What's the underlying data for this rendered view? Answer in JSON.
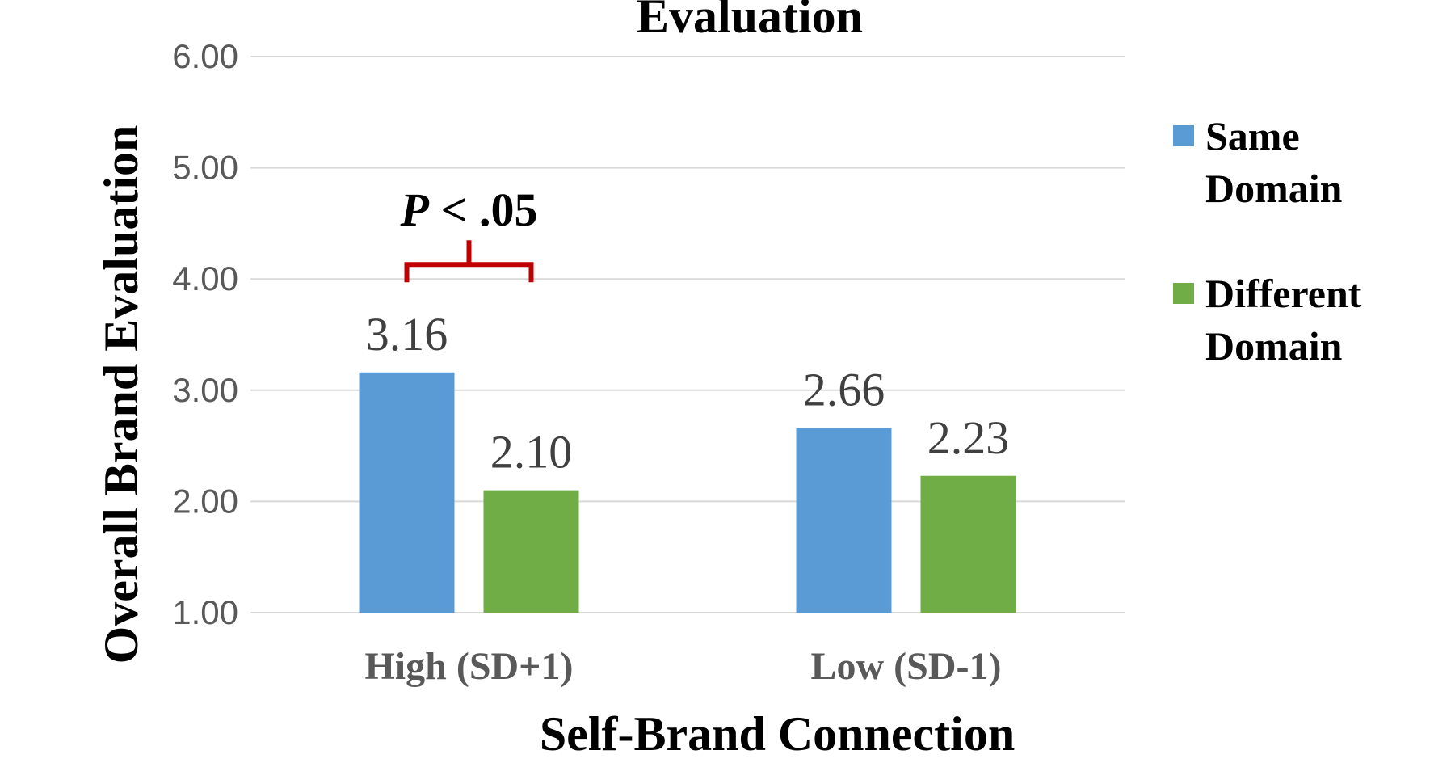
{
  "chart_data": {
    "type": "bar",
    "title": "Evaluation",
    "xlabel": "Self-Brand Connection",
    "ylabel": "Overall Brand Evaluation",
    "categories": [
      "High (SD+1)",
      "Low (SD-1)"
    ],
    "series": [
      {
        "name": "Same Domain",
        "values": [
          3.16,
          2.66
        ],
        "labels": [
          "3.16",
          "2.66"
        ],
        "color": "#5B9BD5"
      },
      {
        "name": "Different Domain",
        "values": [
          2.1,
          2.23
        ],
        "labels": [
          "2.10",
          "2.23"
        ],
        "color": "#70AD47"
      }
    ],
    "ylim": [
      1.0,
      6.0
    ],
    "yticks": [
      "1.00",
      "2.00",
      "3.00",
      "4.00",
      "5.00",
      "6.00"
    ],
    "grid": true,
    "legend_position": "right",
    "annotation": {
      "prefix": "P",
      "text": " < .05",
      "category": "High (SD+1)",
      "color": "#C00000"
    }
  }
}
